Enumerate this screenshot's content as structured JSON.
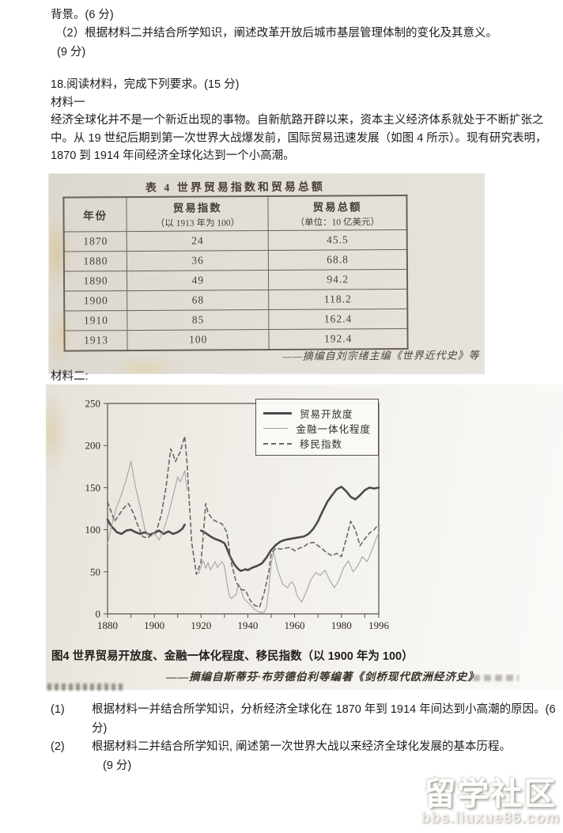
{
  "page": {
    "background_score_line": "背景。(6 分)",
    "prev_question2": "（2）根据材料二并结合所学知识，阐述改革开放后城市基层管理体制的变化及其意义。",
    "prev_question2_score": "(9 分)",
    "question18_heading": "18.阅读材料，完成下列要求。(15 分)",
    "material1_label": "材料一",
    "material1_text": "经济全球化并不是一个新近出现的事物。自新航路开辟以来，资本主义经济体系就处于不断扩张之中。从 19 世纪后期到第一次世界大战爆发前，国际贸易迅速发展（如图 4 所示）。现有研究表明，1870 到 1914 年间经济全球化达到一个小高潮。",
    "material2_label": "材料二:"
  },
  "table": {
    "title": "表 4  世界贸易指数和贸易总额",
    "headers": [
      "年份",
      "贸易指数",
      "贸易总额"
    ],
    "subheaders": [
      "",
      "（以 1913 年为 100）",
      "（单位：10 亿美元）"
    ],
    "rows": [
      [
        "1870",
        "24",
        "45.5"
      ],
      [
        "1880",
        "36",
        "68.8"
      ],
      [
        "1890",
        "49",
        "94.2"
      ],
      [
        "1900",
        "68",
        "118.2"
      ],
      [
        "1910",
        "85",
        "162.4"
      ],
      [
        "1913",
        "100",
        "192.4"
      ]
    ],
    "source": "——摘编自刘宗绪主编《世界近代史》等"
  },
  "chart_data": {
    "type": "line",
    "title": "图4 世界贸易开放度、金融一体化程度、移民指数（以 1900 年为 100）",
    "source": "——摘编自斯蒂芬·布劳德伯利等编著《剑桥现代欧洲经济史》",
    "xlabel": "",
    "ylabel": "",
    "xlim": [
      1880,
      1996
    ],
    "ylim": [
      0,
      250
    ],
    "xticks": [
      1880,
      1900,
      1920,
      1940,
      1960,
      1980,
      1996
    ],
    "yticks": [
      0,
      50,
      100,
      150,
      200,
      250
    ],
    "grid": false,
    "legend_position": "top-right",
    "series": [
      {
        "name": "贸易开放度",
        "style": "solid-thick",
        "color": "#4a4a4a",
        "stroke_width": 2.6,
        "dash": "",
        "segments": [
          [
            [
              1880,
              112
            ],
            [
              1881,
              107
            ],
            [
              1882,
              103
            ],
            [
              1884,
              97
            ],
            [
              1886,
              95
            ],
            [
              1888,
              99
            ],
            [
              1890,
              100
            ],
            [
              1892,
              97
            ],
            [
              1894,
              95
            ],
            [
              1896,
              97
            ],
            [
              1898,
              94
            ],
            [
              1900,
              96
            ],
            [
              1902,
              99
            ],
            [
              1904,
              95
            ],
            [
              1906,
              98
            ],
            [
              1908,
              95
            ],
            [
              1910,
              97
            ],
            [
              1912,
              101
            ],
            [
              1913,
              106
            ]
          ],
          [
            [
              1920,
              99
            ],
            [
              1922,
              96
            ],
            [
              1924,
              92
            ],
            [
              1926,
              89
            ],
            [
              1928,
              87
            ],
            [
              1930,
              84
            ],
            [
              1931,
              78
            ],
            [
              1932,
              71
            ],
            [
              1933,
              65
            ],
            [
              1934,
              60
            ],
            [
              1935,
              56
            ],
            [
              1936,
              53
            ],
            [
              1937,
              51
            ],
            [
              1938,
              52
            ],
            [
              1939,
              53
            ],
            [
              1940,
              52
            ],
            [
              1942,
              55
            ],
            [
              1944,
              57
            ],
            [
              1946,
              60
            ],
            [
              1948,
              67
            ],
            [
              1950,
              76
            ],
            [
              1952,
              82
            ],
            [
              1954,
              86
            ],
            [
              1956,
              88
            ],
            [
              1958,
              89
            ],
            [
              1960,
              90
            ],
            [
              1962,
              91
            ],
            [
              1964,
              92
            ],
            [
              1966,
              95
            ],
            [
              1968,
              101
            ],
            [
              1970,
              110
            ],
            [
              1972,
              122
            ],
            [
              1974,
              133
            ],
            [
              1976,
              141
            ],
            [
              1978,
              148
            ],
            [
              1980,
              151
            ],
            [
              1982,
              146
            ],
            [
              1984,
              139
            ],
            [
              1986,
              136
            ],
            [
              1988,
              141
            ],
            [
              1990,
              147
            ],
            [
              1992,
              150
            ],
            [
              1994,
              149
            ],
            [
              1996,
              150
            ]
          ]
        ]
      },
      {
        "name": "金融一体化程度",
        "style": "solid-thin",
        "color": "#a4a4a4",
        "stroke_width": 1.1,
        "dash": "",
        "segments": [
          [
            [
              1880,
              83
            ],
            [
              1882,
              108
            ],
            [
              1884,
              128
            ],
            [
              1886,
              142
            ],
            [
              1888,
              160
            ],
            [
              1890,
              181
            ],
            [
              1892,
              150
            ],
            [
              1894,
              127
            ],
            [
              1896,
              100
            ],
            [
              1898,
              92
            ],
            [
              1900,
              96
            ],
            [
              1902,
              88
            ],
            [
              1904,
              100
            ],
            [
              1906,
              118
            ],
            [
              1908,
              140
            ],
            [
              1910,
              163
            ],
            [
              1911,
              157
            ],
            [
              1912,
              162
            ],
            [
              1913,
              170
            ],
            [
              1914,
              148
            ]
          ],
          [
            [
              1919,
              48
            ],
            [
              1920,
              57
            ],
            [
              1921,
              63
            ],
            [
              1922,
              54
            ],
            [
              1923,
              61
            ],
            [
              1924,
              52
            ],
            [
              1925,
              57
            ],
            [
              1926,
              62
            ],
            [
              1927,
              55
            ],
            [
              1928,
              59
            ],
            [
              1929,
              62
            ],
            [
              1930,
              57
            ],
            [
              1931,
              38
            ],
            [
              1932,
              22
            ],
            [
              1933,
              18
            ],
            [
              1934,
              21
            ],
            [
              1935,
              23
            ],
            [
              1936,
              35
            ],
            [
              1937,
              31
            ],
            [
              1938,
              20
            ],
            [
              1939,
              16
            ],
            [
              1941,
              11
            ],
            [
              1943,
              5
            ],
            [
              1945,
              2
            ],
            [
              1947,
              2
            ],
            [
              1948,
              8
            ],
            [
              1949,
              30
            ],
            [
              1950,
              60
            ],
            [
              1951,
              74
            ],
            [
              1952,
              62
            ],
            [
              1953,
              50
            ],
            [
              1955,
              35
            ],
            [
              1957,
              31
            ],
            [
              1958,
              36
            ],
            [
              1959,
              38
            ],
            [
              1960,
              33
            ],
            [
              1961,
              22
            ],
            [
              1963,
              14
            ],
            [
              1965,
              26
            ],
            [
              1967,
              41
            ],
            [
              1969,
              49
            ],
            [
              1971,
              46
            ],
            [
              1973,
              52
            ],
            [
              1975,
              40
            ],
            [
              1977,
              31
            ],
            [
              1979,
              40
            ],
            [
              1981,
              55
            ],
            [
              1983,
              63
            ],
            [
              1985,
              50
            ],
            [
              1987,
              57
            ],
            [
              1989,
              68
            ],
            [
              1991,
              62
            ],
            [
              1993,
              75
            ],
            [
              1995,
              90
            ],
            [
              1996,
              96
            ]
          ]
        ]
      },
      {
        "name": "移民指数",
        "style": "dashed",
        "color": "#676767",
        "stroke_width": 1.6,
        "dash": "5 4",
        "segments": [
          [
            [
              1880,
              133
            ],
            [
              1882,
              118
            ],
            [
              1883,
              110
            ],
            [
              1885,
              118
            ],
            [
              1887,
              126
            ],
            [
              1889,
              131
            ],
            [
              1891,
              120
            ],
            [
              1893,
              105
            ],
            [
              1895,
              92
            ],
            [
              1897,
              90
            ],
            [
              1899,
              94
            ],
            [
              1901,
              99
            ],
            [
              1903,
              118
            ],
            [
              1905,
              150
            ],
            [
              1907,
              196
            ],
            [
              1908,
              190
            ],
            [
              1909,
              181
            ],
            [
              1911,
              192
            ],
            [
              1913,
              211
            ],
            [
              1914,
              180
            ],
            [
              1915,
              132
            ],
            [
              1916,
              85
            ],
            [
              1918,
              47
            ],
            [
              1920,
              62
            ],
            [
              1921,
              95
            ],
            [
              1922,
              131
            ],
            [
              1923,
              120
            ],
            [
              1925,
              112
            ],
            [
              1927,
              109
            ],
            [
              1929,
              107
            ],
            [
              1931,
              97
            ],
            [
              1932,
              78
            ],
            [
              1933,
              60
            ],
            [
              1935,
              38
            ],
            [
              1937,
              29
            ],
            [
              1939,
              28
            ],
            [
              1941,
              16
            ],
            [
              1943,
              10
            ],
            [
              1945,
              8
            ],
            [
              1947,
              25
            ],
            [
              1949,
              50
            ],
            [
              1950,
              72
            ],
            [
              1952,
              78
            ],
            [
              1954,
              77
            ],
            [
              1956,
              78
            ],
            [
              1958,
              79
            ],
            [
              1960,
              75
            ],
            [
              1962,
              78
            ],
            [
              1964,
              80
            ],
            [
              1966,
              84
            ],
            [
              1968,
              85
            ],
            [
              1970,
              81
            ],
            [
              1972,
              77
            ],
            [
              1974,
              72
            ],
            [
              1976,
              69
            ],
            [
              1978,
              72
            ],
            [
              1980,
              68
            ],
            [
              1982,
              88
            ],
            [
              1984,
              110
            ],
            [
              1986,
              100
            ],
            [
              1988,
              81
            ],
            [
              1990,
              89
            ],
            [
              1992,
              96
            ],
            [
              1994,
              100
            ],
            [
              1996,
              107
            ]
          ]
        ]
      }
    ]
  },
  "questions": {
    "q1": {
      "number": "(1)",
      "text": "根据材料一并结合所学知识，分析经济全球化在 1870 年到 1914 年间达到小高潮的原因。(6 分)"
    },
    "q2": {
      "number": "(2)",
      "text": "根据材料二并结合所学知识, 阐述第一次世界大战以来经济全球化发展的基本历程。",
      "score": "(9 分)"
    }
  },
  "watermark": {
    "title": "留学社区",
    "url": "bbs.liuxue86.com"
  }
}
